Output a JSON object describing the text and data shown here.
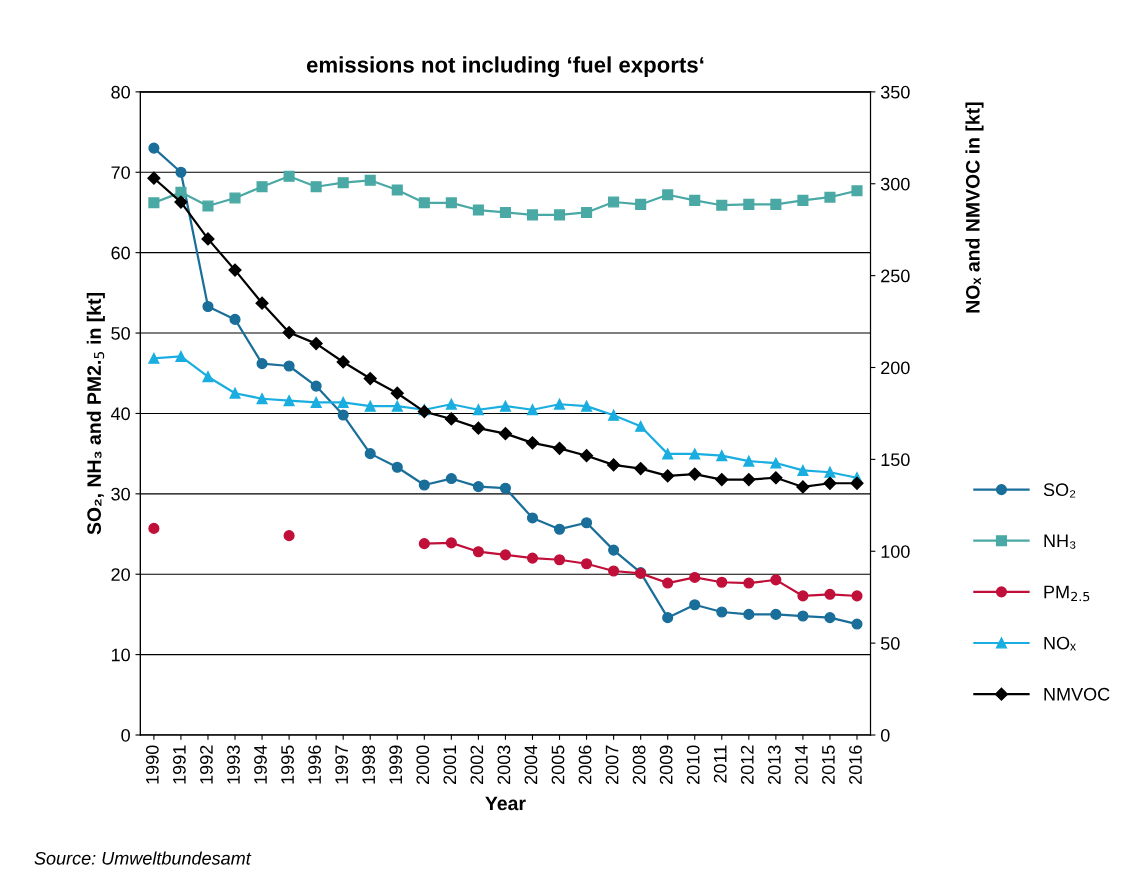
{
  "chart_data": {
    "type": "line",
    "title": "emissions not including ‘fuel exports‘",
    "xlabel": "Year",
    "ylabel": "SO₂, NH₃ and PM2.$_{5}$ in [kt]",
    "y2label": "NOₓ and NMVOC in [kt]",
    "categories": [
      "1990",
      "1991",
      "1992",
      "1993",
      "1994",
      "1995",
      "1996",
      "1997",
      "1998",
      "1999",
      "2000",
      "2001",
      "2002",
      "2003",
      "2004",
      "2005",
      "2006",
      "2007",
      "2008",
      "2009",
      "2010",
      "2011",
      "2012",
      "2013",
      "2014",
      "2015",
      "2016"
    ],
    "ylim": [
      0,
      80
    ],
    "yticks": [
      0,
      10,
      20,
      30,
      40,
      50,
      60,
      70,
      80
    ],
    "y2lim": [
      0,
      350
    ],
    "y2ticks": [
      0,
      50,
      100,
      150,
      200,
      250,
      300,
      350
    ],
    "grid": "y",
    "legend": "right",
    "line_style": "solid",
    "series": [
      {
        "name": "SO₂",
        "color": "#1a6e9a",
        "marker": "circle",
        "values": [
          73.0,
          70.0,
          53.3,
          51.7,
          46.2,
          45.9,
          43.4,
          39.8,
          35.0,
          33.3,
          31.1,
          31.9,
          30.9,
          30.7,
          27.0,
          25.6,
          26.4,
          23.0,
          20.2,
          14.6,
          16.2,
          15.3,
          15.0,
          15.0,
          14.8,
          14.6,
          13.8
        ]
      },
      {
        "name": "NH₃",
        "color": "#4aa9a4",
        "marker": "square",
        "values": [
          66.2,
          67.5,
          65.8,
          66.8,
          68.2,
          69.5,
          68.2,
          68.7,
          69.0,
          67.8,
          66.2,
          66.2,
          65.3,
          65.0,
          64.7,
          64.7,
          65.0,
          66.3,
          66.0,
          67.2,
          66.5,
          65.9,
          66.0,
          66.0,
          66.5,
          66.9,
          67.7
        ]
      },
      {
        "name": "PM$_{2.5}$",
        "color": "#c0103a",
        "marker": "circle",
        "values": [
          25.7,
          null,
          null,
          null,
          null,
          24.8,
          null,
          null,
          null,
          null,
          23.8,
          23.9,
          22.8,
          22.4,
          22.0,
          21.8,
          21.3,
          20.4,
          20.1,
          18.9,
          19.6,
          19.0,
          18.9,
          19.3,
          17.3,
          17.5,
          17.3
        ]
      },
      {
        "name": "NOₓ",
        "color": "#1aaee0",
        "marker": "triangle",
        "axis": "y2",
        "values": [
          205,
          206,
          195,
          186,
          183,
          182,
          181,
          181,
          179,
          179,
          177,
          180,
          177,
          179,
          177,
          180,
          179,
          174,
          168,
          153,
          153,
          152,
          149,
          148,
          144,
          143,
          140
        ]
      },
      {
        "name": "NMVOC",
        "color": "#000000",
        "marker": "diamond",
        "axis": "y2",
        "values": [
          303,
          290,
          270,
          253,
          235,
          219,
          213,
          203,
          194,
          186,
          176,
          172,
          167,
          164,
          159,
          156,
          152,
          147,
          145,
          141,
          142,
          139,
          139,
          140,
          135,
          137,
          137
        ]
      }
    ],
    "annotations": [
      "Source: Umweltbundesamt"
    ]
  }
}
